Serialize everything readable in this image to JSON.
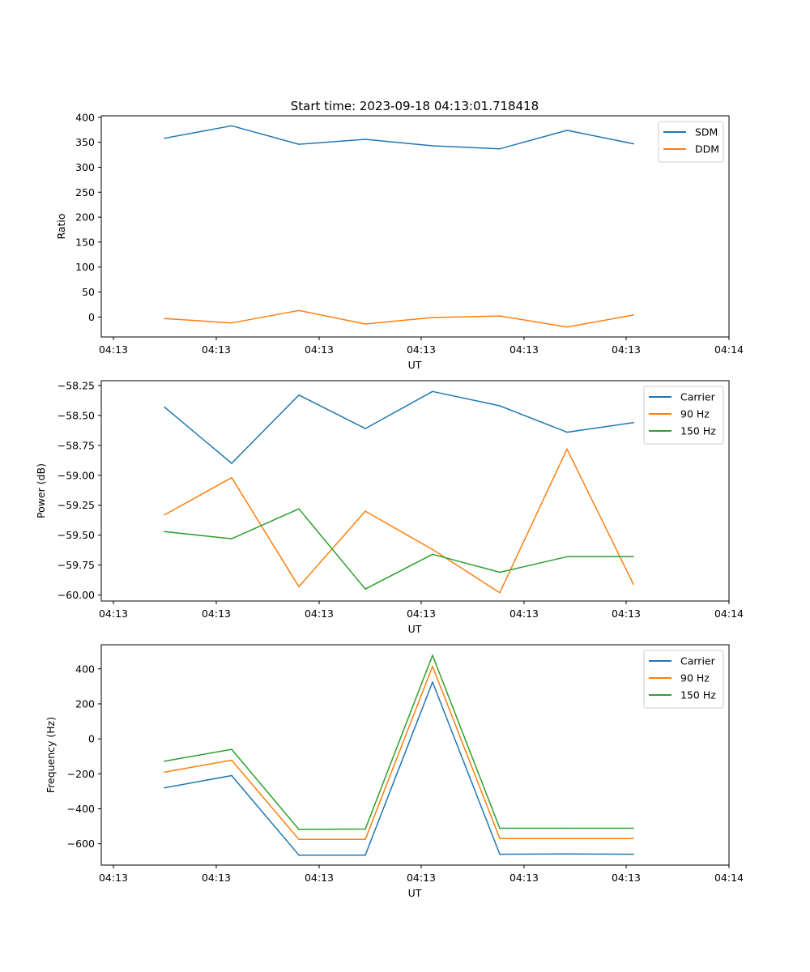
{
  "figure_title": "Start time: 2023-09-18 04:13:01.718418",
  "chart_data": [
    {
      "type": "line",
      "title": "Start time: 2023-09-18 04:13:01.718418",
      "xlabel": "UT",
      "ylabel": "Ratio",
      "x_tick_labels": [
        "04:13",
        "04:13",
        "04:13",
        "04:13",
        "04:13",
        "04:13",
        "04:14"
      ],
      "x_index": [
        1,
        2,
        3,
        4,
        5,
        6,
        7,
        8
      ],
      "xlim_index": [
        0.24,
        9.62
      ],
      "y_ticks": [
        0,
        50,
        100,
        150,
        200,
        250,
        300,
        350,
        400
      ],
      "ylim": [
        -40,
        403
      ],
      "legend_position": "top-right",
      "series": [
        {
          "name": "SDM",
          "color": "#1f77b4",
          "values": [
            358,
            383,
            346,
            356,
            343,
            337,
            374,
            347
          ]
        },
        {
          "name": "DDM",
          "color": "#ff7f0e",
          "values": [
            -3,
            -12,
            13,
            -14,
            -1,
            2,
            -20,
            4
          ]
        }
      ]
    },
    {
      "type": "line",
      "title": "",
      "xlabel": "UT",
      "ylabel": "Power (dB)",
      "x_tick_labels": [
        "04:13",
        "04:13",
        "04:13",
        "04:13",
        "04:13",
        "04:13",
        "04:14"
      ],
      "x_index": [
        1,
        2,
        3,
        4,
        5,
        6,
        7,
        8
      ],
      "xlim_index": [
        0.24,
        9.62
      ],
      "y_ticks": [
        -60.0,
        -59.75,
        -59.5,
        -59.25,
        -59.0,
        -58.75,
        -58.5,
        -58.25
      ],
      "y_tick_labels": [
        "−60.00",
        "−59.75",
        "−59.50",
        "−59.25",
        "−59.00",
        "−58.75",
        "−58.50",
        "−58.25"
      ],
      "ylim": [
        -60.05,
        -58.21
      ],
      "legend_position": "top-right",
      "series": [
        {
          "name": "Carrier",
          "color": "#1f77b4",
          "values": [
            -58.43,
            -58.9,
            -58.33,
            -58.61,
            -58.3,
            -58.42,
            -58.64,
            -58.56
          ]
        },
        {
          "name": "90 Hz",
          "color": "#ff7f0e",
          "values": [
            -59.33,
            -59.02,
            -59.93,
            -59.3,
            -59.62,
            -59.98,
            -58.78,
            -59.91
          ]
        },
        {
          "name": "150 Hz",
          "color": "#2ca02c",
          "values": [
            -59.47,
            -59.53,
            -59.28,
            -59.95,
            -59.66,
            -59.81,
            -59.68,
            -59.68
          ]
        }
      ]
    },
    {
      "type": "line",
      "title": "",
      "xlabel": "UT",
      "ylabel": "Frequency (Hz)",
      "x_tick_labels": [
        "04:13",
        "04:13",
        "04:13",
        "04:13",
        "04:13",
        "04:13",
        "04:14"
      ],
      "x_index": [
        1,
        2,
        3,
        4,
        5,
        6,
        7,
        8
      ],
      "xlim_index": [
        0.24,
        9.62
      ],
      "y_ticks": [
        -600,
        -400,
        -200,
        0,
        200,
        400
      ],
      "y_tick_labels": [
        "−600",
        "−400",
        "−200",
        "0",
        "200",
        "400"
      ],
      "ylim": [
        -722,
        538
      ],
      "legend_position": "top-right",
      "series": [
        {
          "name": "Carrier",
          "color": "#1f77b4",
          "values": [
            -280,
            -210,
            -665,
            -665,
            325,
            -660,
            -658,
            -660
          ]
        },
        {
          "name": "90 Hz",
          "color": "#ff7f0e",
          "values": [
            -190,
            -122,
            -575,
            -575,
            415,
            -570,
            -570,
            -570
          ]
        },
        {
          "name": "150 Hz",
          "color": "#2ca02c",
          "values": [
            -128,
            -60,
            -518,
            -516,
            478,
            -511,
            -511,
            -511
          ]
        }
      ]
    }
  ]
}
